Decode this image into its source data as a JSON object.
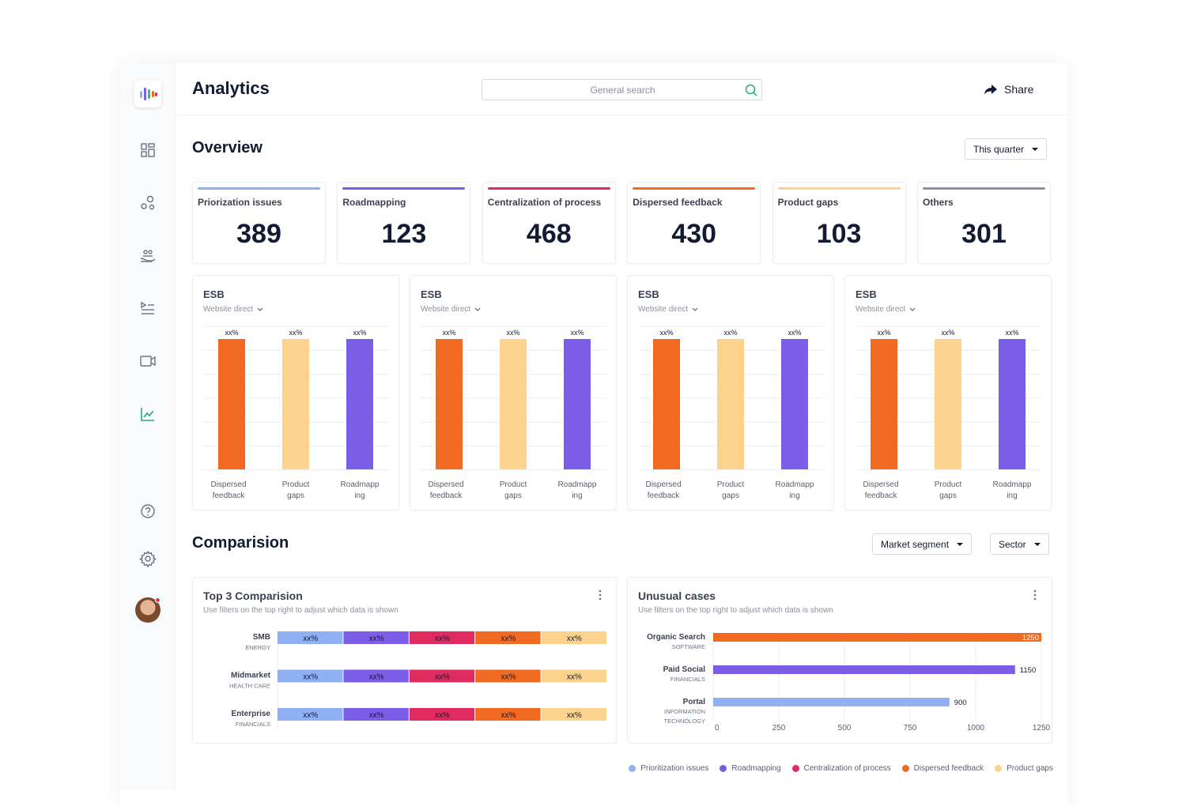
{
  "header": {
    "title": "Analytics",
    "search_placeholder": "General search",
    "share_label": "Share"
  },
  "sidebar": {
    "icons": [
      "dashboard-icon",
      "workflow-icon",
      "hand-users-icon",
      "list-play-icon",
      "video-camera-icon",
      "line-chart-icon",
      "help-icon",
      "settings-icon"
    ],
    "active": "line-chart-icon"
  },
  "overview": {
    "title": "Overview",
    "period_label": "This quarter",
    "stats": [
      {
        "label": "Priorization issues",
        "value": "389",
        "color": "#8fb0f5"
      },
      {
        "label": "Roadmapping",
        "value": "123",
        "color": "#7b5de8"
      },
      {
        "label": "Centralization of process",
        "value": "468",
        "color": "#df2b5f"
      },
      {
        "label": "Dispersed feedback",
        "value": "430",
        "color": "#f26a22"
      },
      {
        "label": "Product gaps",
        "value": "103",
        "color": "#fcd28c"
      },
      {
        "label": "Others",
        "value": "301",
        "color": "#8b93a1"
      }
    ]
  },
  "esb_cards": [
    {
      "title": "ESB",
      "channel": "Website direct"
    },
    {
      "title": "ESB",
      "channel": "Website direct"
    },
    {
      "title": "ESB",
      "channel": "Website direct"
    },
    {
      "title": "ESB",
      "channel": "Website direct"
    }
  ],
  "esb_chart": {
    "bars": [
      {
        "label_lines": [
          "Dispersed",
          "feedback"
        ],
        "value_label": "xx%",
        "color": "#f26a22"
      },
      {
        "label_lines": [
          "Product",
          "gaps"
        ],
        "value_label": "xx%",
        "color": "#fcd28c"
      },
      {
        "label_lines": [
          "Roadmapp",
          "ing"
        ],
        "value_label": "xx%",
        "color": "#7b5de8"
      }
    ]
  },
  "comparison": {
    "title": "Comparision",
    "filters": [
      "Market segment",
      "Sector"
    ],
    "top3": {
      "title": "Top 3 Comparision",
      "subtitle": "Use filters on the top right to adjust which data is shown",
      "rows": [
        {
          "name": "SMB",
          "sector": "ENERGY"
        },
        {
          "name": "Midmarket",
          "sector": "HEALTH CARE"
        },
        {
          "name": "Enterprise",
          "sector": "FINANCIALS"
        }
      ],
      "segment_label": "xx%",
      "segment_colors": [
        "#8fb0f5",
        "#7b5de8",
        "#df2b5f",
        "#f26a22",
        "#fcd28c"
      ]
    },
    "unusual": {
      "title": "Unusual cases",
      "subtitle": "Use filters on the top right to adjust which data is shown"
    }
  },
  "chart_data": {
    "type": "bar",
    "orientation": "horizontal",
    "title": "Unusual cases",
    "categories": [
      {
        "name": "Organic Search",
        "sector_lines": [
          "SOFTWARE"
        ]
      },
      {
        "name": "Paid Social",
        "sector_lines": [
          "FINANCIALS"
        ]
      },
      {
        "name": "Portal",
        "sector_lines": [
          "INFORMATION",
          "TECHNOLOGY"
        ]
      }
    ],
    "values": [
      1250,
      1150,
      900
    ],
    "colors": [
      "#f26a22",
      "#7b5de8",
      "#8fb0f5"
    ],
    "xlim": [
      0,
      1250
    ],
    "xticks": [
      0,
      250,
      500,
      750,
      1000,
      1250
    ],
    "grid": true
  },
  "legend": [
    {
      "label": "Prioritization issues",
      "color": "#8fb0f5"
    },
    {
      "label": "Roadmapping",
      "color": "#7b5de8"
    },
    {
      "label": "Centralization of process",
      "color": "#df2b5f"
    },
    {
      "label": "Dispersed feedback",
      "color": "#f26a22"
    },
    {
      "label": "Product gaps",
      "color": "#fcd28c"
    }
  ]
}
